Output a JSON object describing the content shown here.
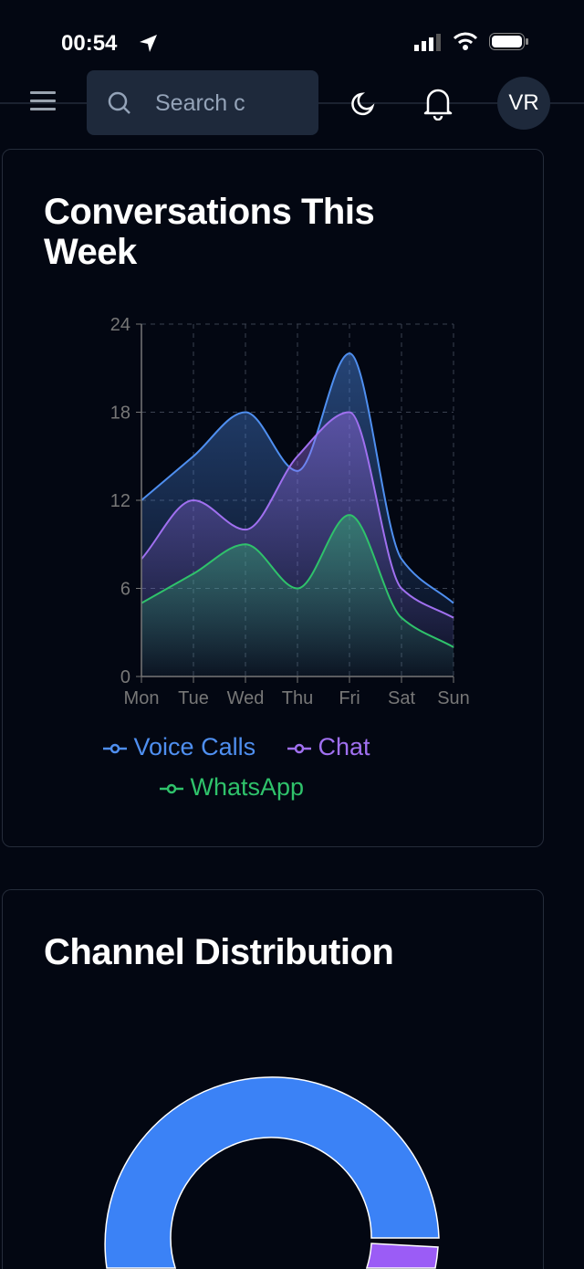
{
  "status_bar": {
    "time": "00:54"
  },
  "header": {
    "search_placeholder": "Search c",
    "avatar_initials": "VR"
  },
  "colors": {
    "voice": "#4f8ff0",
    "chat": "#a070f0",
    "whatsapp": "#2fc26b",
    "background": "#030712"
  },
  "cards": [
    {
      "title": "Conversations This Week"
    },
    {
      "title": "Channel Distribution"
    }
  ],
  "chart_data": [
    {
      "type": "area",
      "title": "Conversations This Week",
      "categories": [
        "Mon",
        "Tue",
        "Wed",
        "Thu",
        "Fri",
        "Sat",
        "Sun"
      ],
      "ylim": [
        0,
        24
      ],
      "yticks": [
        "0",
        "6",
        "12",
        "18",
        "24"
      ],
      "grid": true,
      "legend": "bottom",
      "series": [
        {
          "name": "Voice Calls",
          "color": "#4f8ff0",
          "values": [
            12,
            15,
            18,
            14,
            22,
            8,
            5
          ]
        },
        {
          "name": "Chat",
          "color": "#a070f0",
          "values": [
            8,
            12,
            10,
            15,
            18,
            6,
            4
          ]
        },
        {
          "name": "WhatsApp",
          "color": "#2fc26b",
          "values": [
            5,
            7,
            9,
            6,
            11,
            4,
            2
          ]
        }
      ]
    },
    {
      "type": "pie",
      "title": "Channel Distribution",
      "donut": true,
      "series": [
        {
          "name": "Voice Calls",
          "color": "#3b82f6"
        },
        {
          "name": "Chat",
          "color": "#9b5cf6"
        }
      ]
    }
  ]
}
